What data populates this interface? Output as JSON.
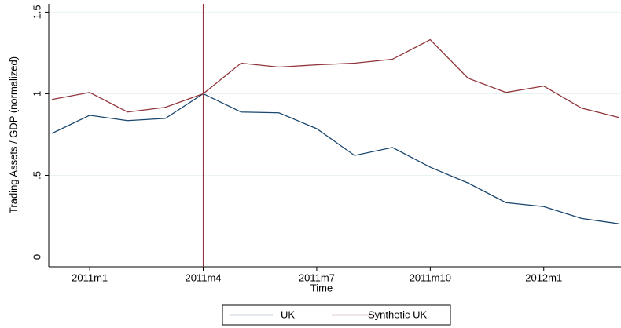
{
  "chart_data": {
    "type": "line",
    "xlabel": "Time",
    "ylabel": "Trading Assets / GDP (normalized)",
    "categories": [
      null,
      "2011m1",
      null,
      null,
      "2011m4",
      null,
      null,
      "2011m7",
      null,
      null,
      "2011m10",
      null,
      null,
      "2012m1",
      null,
      null
    ],
    "series": [
      {
        "name": "UK",
        "color": "#1a476f",
        "values": [
          0.757,
          0.868,
          0.835,
          0.849,
          1.0,
          0.888,
          0.883,
          0.786,
          0.622,
          0.671,
          0.55,
          0.453,
          0.333,
          0.309,
          0.236,
          0.203
        ]
      },
      {
        "name": "Synthetic UK",
        "color": "#90353b",
        "values": [
          0.965,
          1.008,
          0.888,
          0.917,
          1.0,
          1.187,
          1.163,
          1.177,
          1.187,
          1.211,
          1.331,
          1.095,
          1.008,
          1.047,
          0.912,
          0.854
        ]
      }
    ],
    "ylim": [
      -0.06,
      1.55
    ],
    "yticks": [
      0,
      {
        "value": 0.5,
        "label": ".5"
      },
      1,
      1.5
    ],
    "grid": true,
    "vline": "2011m4",
    "vline_color": "#90353b",
    "legend": "bottom"
  }
}
